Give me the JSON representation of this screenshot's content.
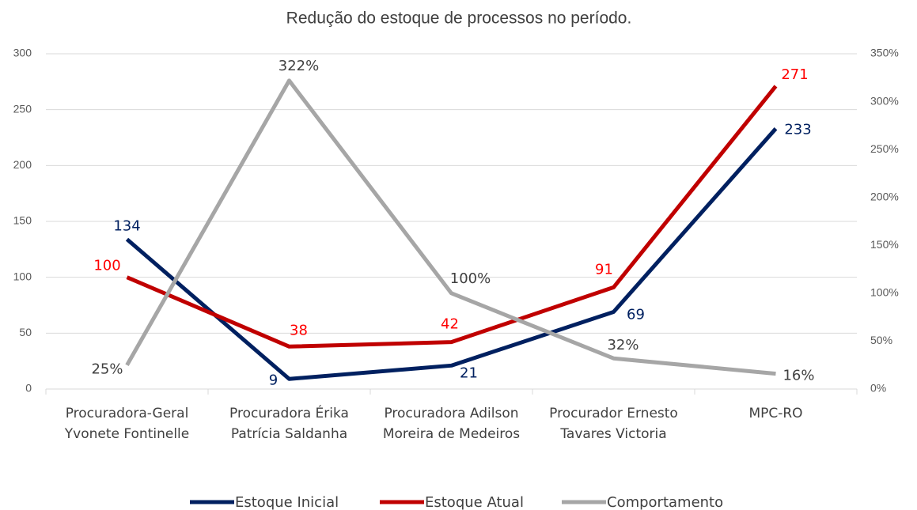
{
  "chart_data": {
    "type": "line",
    "title": "Redução do estoque de processos no período.",
    "categories": [
      "Procuradora-Geral Yvonete Fontinelle",
      "Procuradora Érika Patrícia Saldanha",
      "Procuradora Adilson Moreira de Medeiros",
      "Procurador Ernesto Tavares Victoria",
      "MPC-RO"
    ],
    "series": [
      {
        "name": "Estoque Inicial",
        "color": "#002060",
        "values": [
          134,
          9,
          21,
          69,
          233
        ]
      },
      {
        "name": "Estoque Atual",
        "color": "#c00000",
        "values": [
          100,
          38,
          42,
          91,
          271
        ]
      },
      {
        "name": "Comportamento",
        "color": "#a6a6a6",
        "axis": "y2",
        "values": [
          25,
          322,
          100,
          32,
          16
        ],
        "value_labels": [
          "25%",
          "322%",
          "100%",
          "32%",
          "16%"
        ]
      }
    ],
    "ylim": [
      0,
      300
    ],
    "yticks": [
      0,
      50,
      100,
      150,
      200,
      250,
      300
    ],
    "y2lim": [
      0,
      350
    ],
    "y2ticks": [
      {
        "value": 0,
        "label": "0%"
      },
      {
        "value": 50,
        "label": "50%"
      },
      {
        "value": 100,
        "label": "100%"
      },
      {
        "value": 150,
        "label": "150%"
      },
      {
        "value": 200,
        "label": "200%"
      },
      {
        "value": 250,
        "label": "250%"
      },
      {
        "value": 300,
        "label": "300%"
      },
      {
        "value": 350,
        "label": "350%"
      }
    ],
    "grid": true,
    "legend": "bottom"
  }
}
